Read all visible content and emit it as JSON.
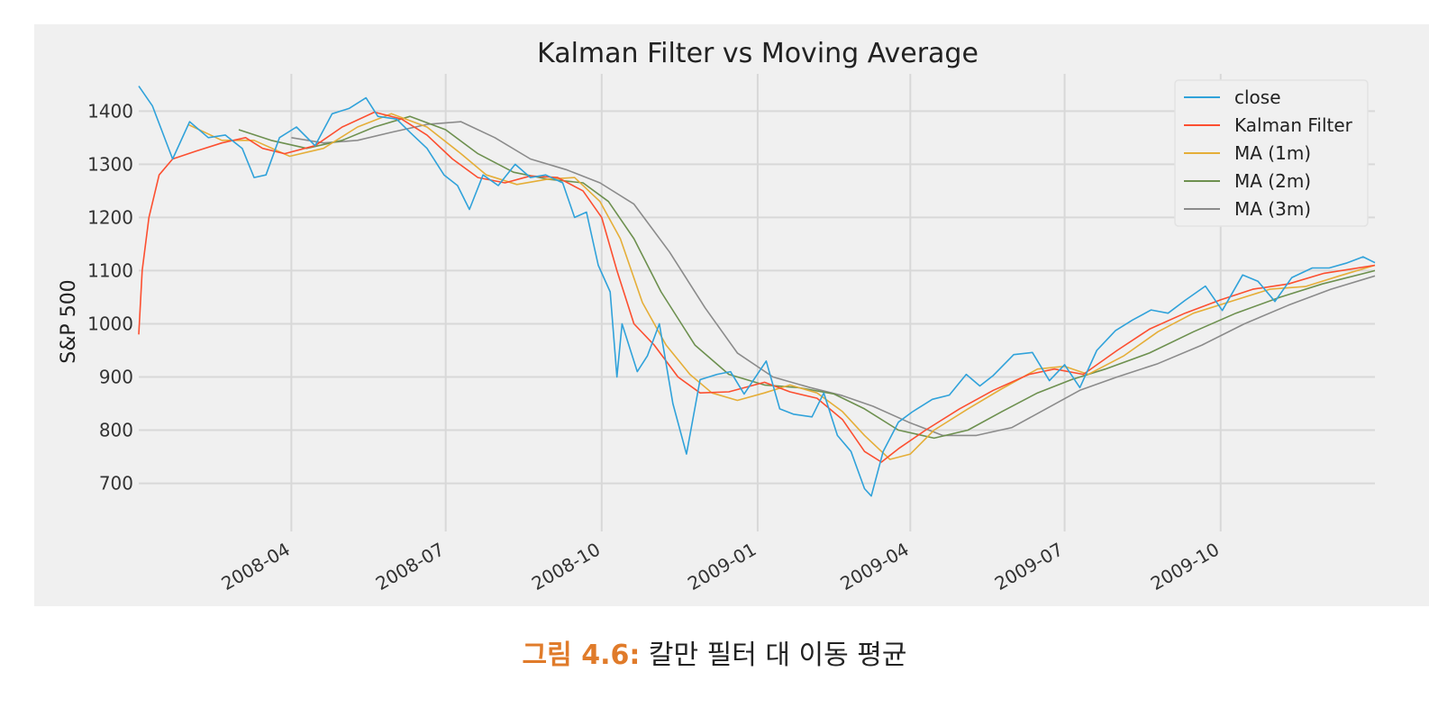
{
  "chart_data": {
    "type": "line",
    "title": "Kalman Filter vs Moving Average",
    "xlabel": "",
    "ylabel": "S&P 500",
    "x_range": [
      "2008-01-02",
      "2009-12-31"
    ],
    "ylim": [
      640,
      1470
    ],
    "yticks": [
      700,
      800,
      900,
      1000,
      1100,
      1200,
      1300,
      1400
    ],
    "xticks": [
      "2008-04-01",
      "2008-07-01",
      "2008-10-01",
      "2009-01-01",
      "2009-04-01",
      "2009-07-01",
      "2009-10-01"
    ],
    "xtick_labels": [
      "2008-04",
      "2008-07",
      "2008-10",
      "2009-01",
      "2009-04",
      "2009-07",
      "2009-10"
    ],
    "grid": true,
    "legend_position": "top-right",
    "series": [
      {
        "name": "close",
        "color": "#30a2da",
        "points": [
          [
            "2008-01-02",
            1447
          ],
          [
            "2008-01-10",
            1410
          ],
          [
            "2008-01-22",
            1310
          ],
          [
            "2008-02-01",
            1380
          ],
          [
            "2008-02-12",
            1350
          ],
          [
            "2008-02-22",
            1355
          ],
          [
            "2008-03-03",
            1330
          ],
          [
            "2008-03-10",
            1275
          ],
          [
            "2008-03-17",
            1280
          ],
          [
            "2008-03-25",
            1350
          ],
          [
            "2008-04-04",
            1370
          ],
          [
            "2008-04-15",
            1335
          ],
          [
            "2008-04-25",
            1395
          ],
          [
            "2008-05-05",
            1405
          ],
          [
            "2008-05-15",
            1425
          ],
          [
            "2008-05-22",
            1390
          ],
          [
            "2008-06-02",
            1385
          ],
          [
            "2008-06-10",
            1360
          ],
          [
            "2008-06-20",
            1330
          ],
          [
            "2008-06-30",
            1280
          ],
          [
            "2008-07-08",
            1260
          ],
          [
            "2008-07-15",
            1215
          ],
          [
            "2008-07-23",
            1280
          ],
          [
            "2008-08-01",
            1260
          ],
          [
            "2008-08-11",
            1300
          ],
          [
            "2008-08-20",
            1275
          ],
          [
            "2008-08-29",
            1280
          ],
          [
            "2008-09-08",
            1265
          ],
          [
            "2008-09-15",
            1200
          ],
          [
            "2008-09-22",
            1210
          ],
          [
            "2008-09-29",
            1110
          ],
          [
            "2008-10-06",
            1060
          ],
          [
            "2008-10-10",
            900
          ],
          [
            "2008-10-13",
            1000
          ],
          [
            "2008-10-22",
            910
          ],
          [
            "2008-10-28",
            940
          ],
          [
            "2008-11-04",
            1000
          ],
          [
            "2008-11-12",
            850
          ],
          [
            "2008-11-20",
            755
          ],
          [
            "2008-11-28",
            895
          ],
          [
            "2008-12-08",
            905
          ],
          [
            "2008-12-16",
            910
          ],
          [
            "2008-12-24",
            868
          ],
          [
            "2009-01-06",
            930
          ],
          [
            "2009-01-14",
            840
          ],
          [
            "2009-01-22",
            830
          ],
          [
            "2009-02-02",
            825
          ],
          [
            "2009-02-09",
            870
          ],
          [
            "2009-02-17",
            790
          ],
          [
            "2009-02-25",
            760
          ],
          [
            "2009-03-05",
            690
          ],
          [
            "2009-03-09",
            676
          ],
          [
            "2009-03-16",
            760
          ],
          [
            "2009-03-25",
            815
          ],
          [
            "2009-04-02",
            834
          ],
          [
            "2009-04-14",
            858
          ],
          [
            "2009-04-24",
            866
          ],
          [
            "2009-05-04",
            905
          ],
          [
            "2009-05-12",
            883
          ],
          [
            "2009-05-20",
            903
          ],
          [
            "2009-06-01",
            942
          ],
          [
            "2009-06-12",
            946
          ],
          [
            "2009-06-22",
            893
          ],
          [
            "2009-07-01",
            923
          ],
          [
            "2009-07-10",
            880
          ],
          [
            "2009-07-20",
            950
          ],
          [
            "2009-07-31",
            987
          ],
          [
            "2009-08-10",
            1007
          ],
          [
            "2009-08-21",
            1026
          ],
          [
            "2009-08-31",
            1020
          ],
          [
            "2009-09-10",
            1044
          ],
          [
            "2009-09-22",
            1071
          ],
          [
            "2009-10-02",
            1025
          ],
          [
            "2009-10-14",
            1092
          ],
          [
            "2009-10-23",
            1080
          ],
          [
            "2009-11-02",
            1042
          ],
          [
            "2009-11-12",
            1087
          ],
          [
            "2009-11-24",
            1105
          ],
          [
            "2009-12-04",
            1105
          ],
          [
            "2009-12-14",
            1114
          ],
          [
            "2009-12-24",
            1126
          ],
          [
            "2009-12-31",
            1115
          ]
        ]
      },
      {
        "name": "Kalman Filter",
        "color": "#fc4f30",
        "points": [
          [
            "2008-01-02",
            980
          ],
          [
            "2008-01-04",
            1100
          ],
          [
            "2008-01-08",
            1200
          ],
          [
            "2008-01-14",
            1280
          ],
          [
            "2008-01-22",
            1310
          ],
          [
            "2008-02-05",
            1325
          ],
          [
            "2008-02-20",
            1340
          ],
          [
            "2008-03-05",
            1350
          ],
          [
            "2008-03-15",
            1330
          ],
          [
            "2008-03-28",
            1320
          ],
          [
            "2008-04-15",
            1335
          ],
          [
            "2008-05-01",
            1370
          ],
          [
            "2008-05-20",
            1398
          ],
          [
            "2008-06-05",
            1385
          ],
          [
            "2008-06-20",
            1355
          ],
          [
            "2008-07-05",
            1310
          ],
          [
            "2008-07-20",
            1275
          ],
          [
            "2008-08-05",
            1265
          ],
          [
            "2008-08-20",
            1278
          ],
          [
            "2008-09-05",
            1275
          ],
          [
            "2008-09-20",
            1250
          ],
          [
            "2008-10-01",
            1200
          ],
          [
            "2008-10-10",
            1100
          ],
          [
            "2008-10-20",
            1000
          ],
          [
            "2008-11-01",
            960
          ],
          [
            "2008-11-15",
            900
          ],
          [
            "2008-11-28",
            870
          ],
          [
            "2008-12-15",
            872
          ],
          [
            "2009-01-05",
            890
          ],
          [
            "2009-01-20",
            872
          ],
          [
            "2009-02-05",
            860
          ],
          [
            "2009-02-20",
            820
          ],
          [
            "2009-03-05",
            760
          ],
          [
            "2009-03-15",
            740
          ],
          [
            "2009-03-25",
            765
          ],
          [
            "2009-04-10",
            800
          ],
          [
            "2009-04-30",
            840
          ],
          [
            "2009-05-20",
            875
          ],
          [
            "2009-06-10",
            905
          ],
          [
            "2009-06-25",
            915
          ],
          [
            "2009-07-12",
            905
          ],
          [
            "2009-08-01",
            950
          ],
          [
            "2009-08-20",
            990
          ],
          [
            "2009-09-10",
            1020
          ],
          [
            "2009-10-01",
            1045
          ],
          [
            "2009-10-20",
            1065
          ],
          [
            "2009-11-10",
            1075
          ],
          [
            "2009-12-01",
            1095
          ],
          [
            "2009-12-31",
            1110
          ]
        ]
      },
      {
        "name": "MA (1m)",
        "color": "#e5ae38",
        "points": [
          [
            "2008-01-31",
            1375
          ],
          [
            "2008-02-20",
            1345
          ],
          [
            "2008-03-10",
            1345
          ],
          [
            "2008-03-31",
            1315
          ],
          [
            "2008-04-20",
            1330
          ],
          [
            "2008-05-10",
            1370
          ],
          [
            "2008-05-30",
            1395
          ],
          [
            "2008-06-20",
            1370
          ],
          [
            "2008-07-10",
            1320
          ],
          [
            "2008-07-25",
            1280
          ],
          [
            "2008-08-12",
            1262
          ],
          [
            "2008-08-30",
            1272
          ],
          [
            "2008-09-15",
            1275
          ],
          [
            "2008-09-30",
            1230
          ],
          [
            "2008-10-12",
            1160
          ],
          [
            "2008-10-25",
            1040
          ],
          [
            "2008-11-08",
            960
          ],
          [
            "2008-11-22",
            905
          ],
          [
            "2008-12-05",
            870
          ],
          [
            "2008-12-20",
            856
          ],
          [
            "2009-01-05",
            870
          ],
          [
            "2009-01-20",
            885
          ],
          [
            "2009-02-05",
            870
          ],
          [
            "2009-02-20",
            835
          ],
          [
            "2009-03-05",
            790
          ],
          [
            "2009-03-20",
            745
          ],
          [
            "2009-04-01",
            755
          ],
          [
            "2009-04-15",
            800
          ],
          [
            "2009-05-05",
            840
          ],
          [
            "2009-05-25",
            878
          ],
          [
            "2009-06-15",
            915
          ],
          [
            "2009-07-01",
            920
          ],
          [
            "2009-07-15",
            905
          ],
          [
            "2009-08-05",
            940
          ],
          [
            "2009-08-25",
            985
          ],
          [
            "2009-09-15",
            1020
          ],
          [
            "2009-10-10",
            1045
          ],
          [
            "2009-10-30",
            1065
          ],
          [
            "2009-11-20",
            1070
          ],
          [
            "2009-12-10",
            1090
          ],
          [
            "2009-12-31",
            1110
          ]
        ]
      },
      {
        "name": "MA (2m)",
        "color": "#6d904f",
        "points": [
          [
            "2008-03-01",
            1365
          ],
          [
            "2008-03-20",
            1345
          ],
          [
            "2008-04-10",
            1330
          ],
          [
            "2008-05-01",
            1345
          ],
          [
            "2008-05-20",
            1370
          ],
          [
            "2008-06-10",
            1390
          ],
          [
            "2008-07-01",
            1365
          ],
          [
            "2008-07-20",
            1320
          ],
          [
            "2008-08-10",
            1285
          ],
          [
            "2008-08-30",
            1272
          ],
          [
            "2008-09-20",
            1265
          ],
          [
            "2008-10-05",
            1230
          ],
          [
            "2008-10-20",
            1160
          ],
          [
            "2008-11-05",
            1060
          ],
          [
            "2008-11-25",
            960
          ],
          [
            "2008-12-15",
            905
          ],
          [
            "2009-01-05",
            885
          ],
          [
            "2009-01-25",
            880
          ],
          [
            "2009-02-15",
            868
          ],
          [
            "2009-03-05",
            840
          ],
          [
            "2009-03-25",
            800
          ],
          [
            "2009-04-15",
            785
          ],
          [
            "2009-05-05",
            800
          ],
          [
            "2009-05-25",
            835
          ],
          [
            "2009-06-15",
            870
          ],
          [
            "2009-07-05",
            895
          ],
          [
            "2009-07-25",
            915
          ],
          [
            "2009-08-20",
            945
          ],
          [
            "2009-09-15",
            985
          ],
          [
            "2009-10-10",
            1020
          ],
          [
            "2009-11-05",
            1050
          ],
          [
            "2009-11-30",
            1075
          ],
          [
            "2009-12-31",
            1100
          ]
        ]
      },
      {
        "name": "MA (3m)",
        "color": "#8b8b8b",
        "points": [
          [
            "2008-04-01",
            1350
          ],
          [
            "2008-04-20",
            1340
          ],
          [
            "2008-05-10",
            1345
          ],
          [
            "2008-05-30",
            1360
          ],
          [
            "2008-06-20",
            1375
          ],
          [
            "2008-07-10",
            1380
          ],
          [
            "2008-07-30",
            1350
          ],
          [
            "2008-08-20",
            1310
          ],
          [
            "2008-09-10",
            1290
          ],
          [
            "2008-09-30",
            1265
          ],
          [
            "2008-10-20",
            1225
          ],
          [
            "2008-11-10",
            1135
          ],
          [
            "2008-12-01",
            1030
          ],
          [
            "2008-12-20",
            945
          ],
          [
            "2009-01-10",
            900
          ],
          [
            "2009-02-01",
            880
          ],
          [
            "2009-02-20",
            865
          ],
          [
            "2009-03-10",
            845
          ],
          [
            "2009-03-31",
            815
          ],
          [
            "2009-04-20",
            790
          ],
          [
            "2009-05-10",
            790
          ],
          [
            "2009-05-31",
            805
          ],
          [
            "2009-06-20",
            840
          ],
          [
            "2009-07-10",
            875
          ],
          [
            "2009-08-01",
            900
          ],
          [
            "2009-08-25",
            925
          ],
          [
            "2009-09-20",
            960
          ],
          [
            "2009-10-15",
            1000
          ],
          [
            "2009-11-10",
            1035
          ],
          [
            "2009-12-05",
            1065
          ],
          [
            "2009-12-31",
            1090
          ]
        ]
      }
    ]
  },
  "caption": {
    "label": "그림 4.6:",
    "text": "칼만 필터 대 이동 평균"
  },
  "colors": {
    "background": "#f0f0f0",
    "grid": "#d8d8d8",
    "caption_accent": "#e07b2a"
  }
}
